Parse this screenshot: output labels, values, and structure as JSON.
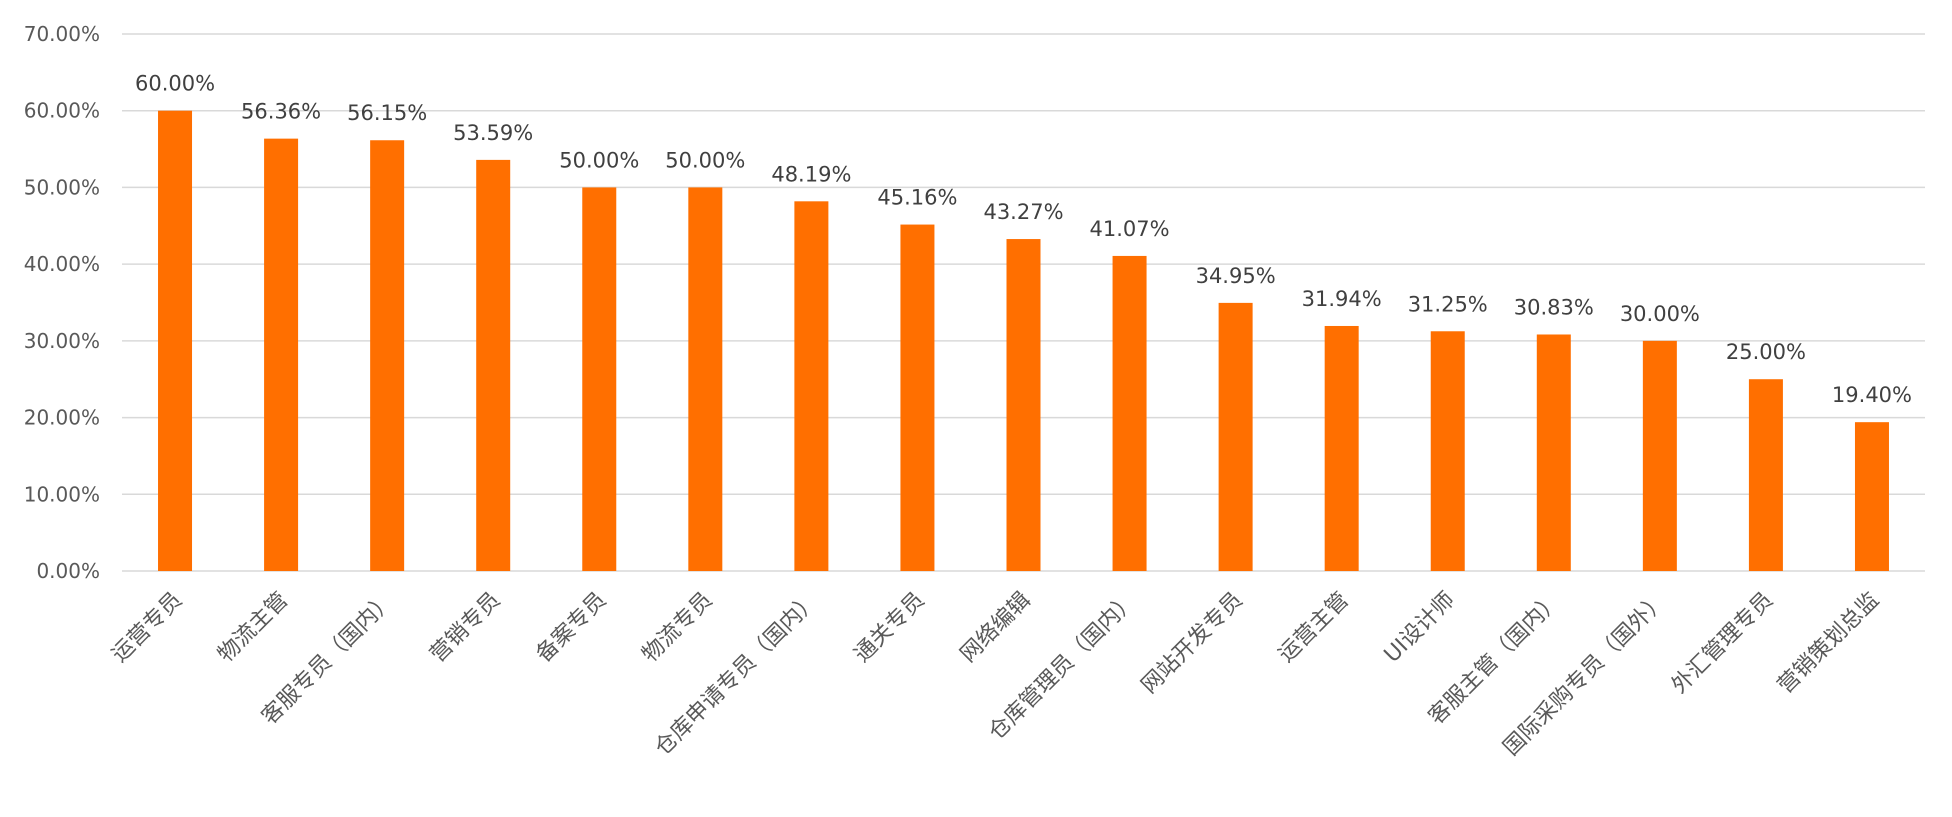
{
  "chart_data": {
    "type": "bar",
    "title": "",
    "xlabel": "",
    "ylabel": "",
    "ylim": [
      0,
      70
    ],
    "yticks": [
      0,
      10,
      20,
      30,
      40,
      50,
      60,
      70
    ],
    "ytick_labels": [
      "0.00%",
      "10.00%",
      "20.00%",
      "30.00%",
      "40.00%",
      "50.00%",
      "60.00%",
      "70.00%"
    ],
    "grid": true,
    "legend": "none",
    "bar_color": "#FF6F00",
    "categories": [
      "运营专员",
      "物流主管",
      "客服专员（国内）",
      "营销专员",
      "备案专员",
      "物流专员",
      "仓库申请专员（国内）",
      "通关专员",
      "网络编辑",
      "仓库管理员（国内）",
      "网站开发专员",
      "运营主管",
      "UI设计师",
      "客服主管（国内）",
      "国际采购专员（国外）",
      "外汇管理专员",
      "营销策划总监"
    ],
    "values": [
      60.0,
      56.36,
      56.15,
      53.59,
      50.0,
      50.0,
      48.19,
      45.16,
      43.27,
      41.07,
      34.95,
      31.94,
      31.25,
      30.83,
      30.0,
      25.0,
      19.4
    ],
    "value_labels": [
      "60.00%",
      "56.36%",
      "56.15%",
      "53.59%",
      "50.00%",
      "50.00%",
      "48.19%",
      "45.16%",
      "43.27%",
      "41.07%",
      "34.95%",
      "31.94%",
      "31.25%",
      "30.83%",
      "30.00%",
      "25.00%",
      "19.40%"
    ]
  }
}
